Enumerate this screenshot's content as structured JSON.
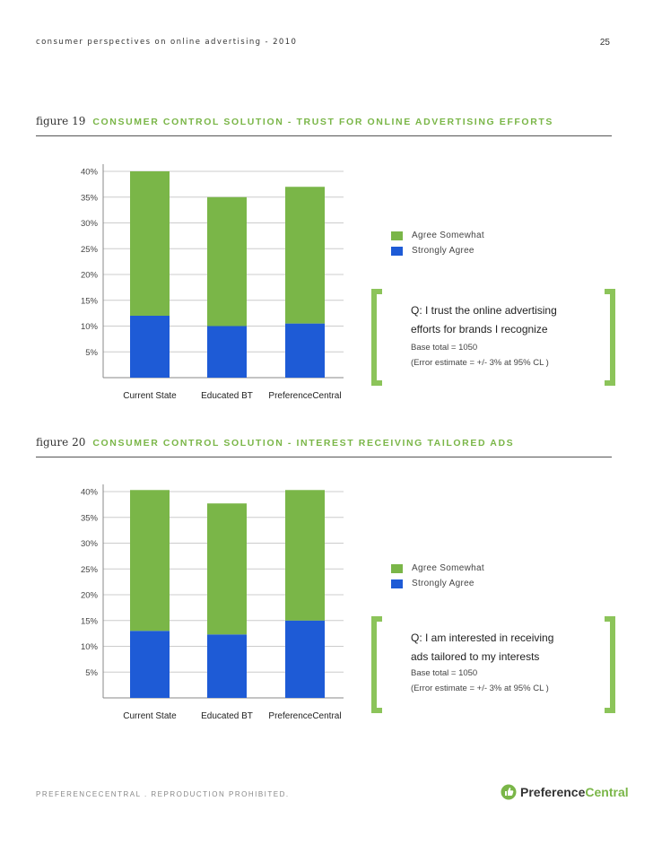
{
  "header": {
    "title": "consumer perspectives on online advertising - 2010",
    "page": "25"
  },
  "colors": {
    "green": "#7ab648",
    "blue": "#1e5bd6",
    "bracket": "#8cc45a"
  },
  "figures": [
    {
      "num": "figure 19",
      "title": "consumer control solution - trust for online advertising efforts",
      "question_line1": "Q:  I trust the online advertising",
      "question_line2": "efforts for brands I recognize",
      "base": "Base total = 1050",
      "error": "(Error  estimate = +/- 3% at 95% CL )"
    },
    {
      "num": "figure 20",
      "title": "consumer control solution - interest receiving tailored ads",
      "question_line1": "Q:  I am interested in receiving",
      "question_line2": "ads tailored to my interests",
      "base": "Base total = 1050",
      "error": "(Error  estimate = +/- 3% at 95% CL )"
    }
  ],
  "chart_data": [
    {
      "type": "bar",
      "stacked": true,
      "title": "consumer control solution - trust for online advertising efforts",
      "categories": [
        "Current State",
        "Educated BT",
        "PreferenceCentral"
      ],
      "series": [
        {
          "name": "Strongly Agree",
          "color": "#1e5bd6",
          "values": [
            12,
            10,
            10.5
          ]
        },
        {
          "name": "Agree Somewhat",
          "color": "#7ab648",
          "values": [
            28,
            25,
            26.5
          ]
        }
      ],
      "legend": [
        "Agree Somewhat",
        "Strongly Agree"
      ],
      "yticks": [
        "5%",
        "10%",
        "15%",
        "20%",
        "25%",
        "30%",
        "35%",
        "40%"
      ],
      "ytick_values": [
        5,
        10,
        15,
        20,
        25,
        30,
        35,
        40
      ],
      "ylim": [
        0,
        40
      ]
    },
    {
      "type": "bar",
      "stacked": true,
      "title": "consumer control solution - interest receiving tailored ads",
      "categories": [
        "Current State",
        "Educated BT",
        "PreferenceCentral"
      ],
      "series": [
        {
          "name": "Strongly Agree",
          "color": "#1e5bd6",
          "values": [
            13,
            12.3,
            15
          ]
        },
        {
          "name": "Agree Somewhat",
          "color": "#7ab648",
          "values": [
            27.3,
            25.4,
            25.3
          ]
        }
      ],
      "legend": [
        "Agree Somewhat",
        "Strongly Agree"
      ],
      "yticks": [
        "5%",
        "10%",
        "15%",
        "20%",
        "25%",
        "30%",
        "35%",
        "40%"
      ],
      "ytick_values": [
        5,
        10,
        15,
        20,
        25,
        30,
        35,
        40
      ],
      "ylim": [
        0,
        40
      ]
    }
  ],
  "footer": {
    "text": "preferencecentral . reproduction prohibited.",
    "logo_pref": "Preference",
    "logo_central": "Central"
  }
}
